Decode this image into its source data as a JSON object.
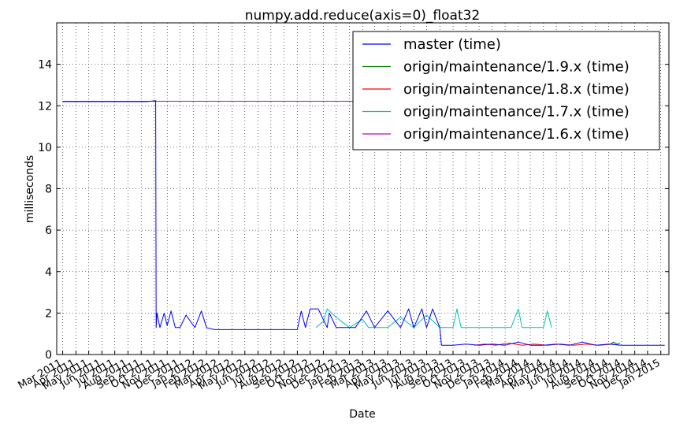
{
  "chart_data": {
    "type": "line",
    "title": "numpy.add.reduce(axis=0)_float32",
    "xlabel": "Date",
    "ylabel": "milliseconds",
    "ylim": [
      0,
      16
    ],
    "yticks": [
      0,
      2,
      4,
      6,
      8,
      10,
      12,
      14
    ],
    "xlim": [
      "2011-02-15",
      "2015-01-20"
    ],
    "xticks": [
      "Mar 2011",
      "Apr 2011",
      "May 2011",
      "Jun 2011",
      "Jul 2011",
      "Aug 2011",
      "Sep 2011",
      "Oct 2011",
      "Nov 2011",
      "Dec 2011",
      "Jan 2012",
      "Feb 2012",
      "Mar 2012",
      "Apr 2012",
      "May 2012",
      "Jun 2012",
      "Jul 2012",
      "Aug 2012",
      "Sep 2012",
      "Oct 2012",
      "Nov 2012",
      "Dec 2012",
      "Jan 2013",
      "Feb 2013",
      "Mar 2013",
      "Apr 2013",
      "May 2013",
      "Jun 2013",
      "Jul 2013",
      "Aug 2013",
      "Sep 2013",
      "Oct 2013",
      "Nov 2013",
      "Dec 2013",
      "Jan 2014",
      "Feb 2014",
      "Mar 2014",
      "Apr 2014",
      "May 2014",
      "Jun 2014",
      "Jul 2014",
      "Aug 2014",
      "Sep 2014",
      "Oct 2014",
      "Nov 2014",
      "Dec 2014",
      "Jan 2015"
    ],
    "grid": true,
    "legend_position": "top-right",
    "series": [
      {
        "name": "master (time)",
        "color": "#0000ff",
        "x": [
          "2011-03-01",
          "2011-09-15",
          "2011-10-05",
          "2011-10-06",
          "2011-10-08",
          "2011-10-15",
          "2011-10-25",
          "2011-11-01",
          "2011-11-10",
          "2011-11-20",
          "2011-12-01",
          "2011-12-15",
          "2012-01-05",
          "2012-01-20",
          "2012-02-01",
          "2012-02-20",
          "2012-03-10",
          "2012-06-01",
          "2012-09-01",
          "2012-09-10",
          "2012-09-20",
          "2012-10-01",
          "2012-10-20",
          "2012-11-10",
          "2012-11-15",
          "2012-12-01",
          "2013-01-15",
          "2013-02-10",
          "2013-03-01",
          "2013-04-01",
          "2013-05-01",
          "2013-05-20",
          "2013-06-01",
          "2013-06-20",
          "2013-07-01",
          "2013-07-15",
          "2013-08-01",
          "2013-08-05",
          "2013-09-01",
          "2013-10-01",
          "2013-11-01",
          "2013-12-01",
          "2014-01-01",
          "2014-02-01",
          "2014-03-01",
          "2014-04-01",
          "2014-05-01",
          "2014-06-01",
          "2014-07-01",
          "2014-08-01",
          "2014-09-01",
          "2014-10-01",
          "2014-11-01",
          "2014-12-01",
          "2015-01-10"
        ],
        "y": [
          12.2,
          12.2,
          12.25,
          1.3,
          2.0,
          1.3,
          2.0,
          1.4,
          2.1,
          1.3,
          1.3,
          1.9,
          1.3,
          2.1,
          1.3,
          1.2,
          1.2,
          1.2,
          1.2,
          2.1,
          1.3,
          2.2,
          2.2,
          1.3,
          2.0,
          1.3,
          1.3,
          2.1,
          1.3,
          2.1,
          1.3,
          2.2,
          1.3,
          2.2,
          1.3,
          2.2,
          1.3,
          0.45,
          0.45,
          0.5,
          0.45,
          0.5,
          0.45,
          0.6,
          0.45,
          0.45,
          0.5,
          0.45,
          0.6,
          0.45,
          0.5,
          0.45,
          0.45,
          0.45,
          0.45
        ]
      },
      {
        "name": "origin/maintenance/1.9.x (time)",
        "color": "#008000",
        "x": [
          "2014-09-05",
          "2014-09-12",
          "2014-09-20",
          "2014-09-28"
        ],
        "y": [
          0.5,
          0.6,
          0.5,
          0.55
        ]
      },
      {
        "name": "origin/maintenance/1.8.x (time)",
        "color": "#ff0000",
        "x": [
          "2013-10-20",
          "2013-11-15",
          "2013-12-10",
          "2014-01-10",
          "2014-02-10",
          "2014-03-10",
          "2014-04-10",
          "2014-05-10",
          "2014-06-10",
          "2014-07-10",
          "2014-08-10",
          "2014-09-10",
          "2014-09-25"
        ],
        "y": [
          0.45,
          0.5,
          0.45,
          0.55,
          0.45,
          0.5,
          0.45,
          0.5,
          0.45,
          0.5,
          0.45,
          0.5,
          0.45
        ]
      },
      {
        "name": "origin/maintenance/1.7.x (time)",
        "color": "#00bfbf",
        "x": [
          "2012-10-15",
          "2012-11-01",
          "2012-11-10",
          "2012-12-01",
          "2013-01-01",
          "2013-02-01",
          "2013-02-15",
          "2013-03-01",
          "2013-04-01",
          "2013-05-01",
          "2013-06-01",
          "2013-07-01",
          "2013-08-01",
          "2013-09-01",
          "2013-09-10",
          "2013-09-20",
          "2013-10-15",
          "2013-12-01",
          "2014-01-15",
          "2014-02-01",
          "2014-02-10",
          "2014-03-01",
          "2014-04-01",
          "2014-04-10",
          "2014-04-20"
        ],
        "y": [
          1.3,
          1.6,
          2.2,
          1.8,
          1.3,
          1.7,
          1.3,
          1.3,
          1.3,
          1.8,
          1.3,
          1.9,
          1.3,
          1.3,
          2.2,
          1.3,
          1.3,
          1.3,
          1.3,
          2.2,
          1.3,
          1.3,
          1.3,
          2.1,
          1.3
        ]
      },
      {
        "name": "origin/maintenance/1.6.x (time)",
        "color": "#bf00bf",
        "x": [
          "2011-03-01",
          "2012-02-01",
          "2013-01-20"
        ],
        "y": [
          12.22,
          12.22,
          12.22
        ]
      }
    ]
  }
}
